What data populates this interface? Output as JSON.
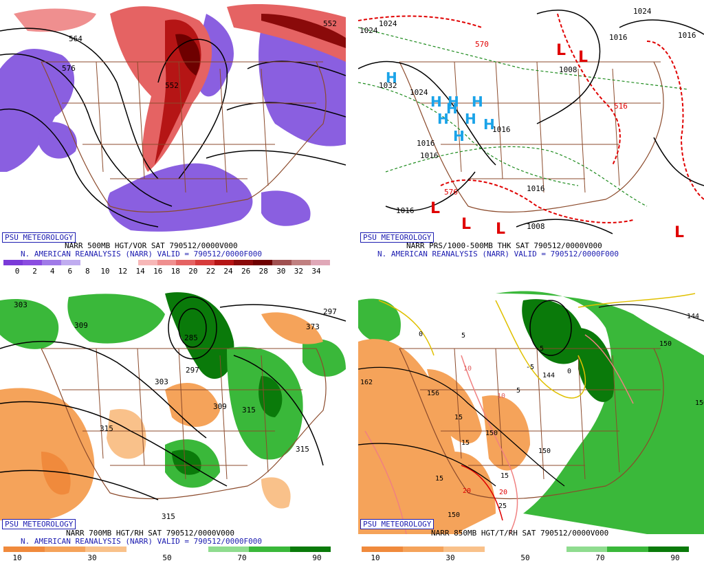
{
  "panels": [
    {
      "id": "tl",
      "badge": "PSU METEOROLOGY",
      "line1": "NARR 500MB HGT/VOR SAT 790512/0000V000",
      "line2": "N. AMERICAN REANALYSIS (NARR) VALID = 790512/0000F000",
      "colorbar_colors": [
        "#7a3ad8",
        "#8a4ce0",
        "#a07ae8",
        "#c0acf0",
        "#ffffff",
        "#ffffff",
        "#ffffff",
        "#f7b7b7",
        "#ef8f8f",
        "#e56363",
        "#d73b3b",
        "#b51515",
        "#8a0a0a",
        "#6e0000",
        "#a05050",
        "#c08080",
        "#e0a8b8"
      ],
      "colorbar_ticks": [
        "0",
        "2",
        "4",
        "6",
        "8",
        "10",
        "12",
        "14",
        "16",
        "18",
        "20",
        "22",
        "24",
        "26",
        "28",
        "30",
        "32",
        "34"
      ],
      "contour_labels": [
        "564",
        "576",
        "552",
        "552"
      ]
    },
    {
      "id": "tr",
      "badge": "PSU METEOROLOGY",
      "line1": "NARR PRS/1000-500MB THK SAT 790512/0000V000",
      "line2": "N. AMERICAN REANALYSIS (NARR) VALID = 790512/0000F000",
      "contour_labels": [
        "1024",
        "1024",
        "1032",
        "1024",
        "1016",
        "1016",
        "1016",
        "1016",
        "1008",
        "1016",
        "1016",
        "1008",
        "1024",
        "1016",
        "570",
        "516",
        "576"
      ],
      "highs": [
        "H",
        "H",
        "H",
        "H",
        "H",
        "H",
        "H",
        "H",
        "H"
      ],
      "lows": [
        "L",
        "L",
        "L",
        "L",
        "L",
        "L",
        "L"
      ]
    },
    {
      "id": "bl",
      "badge": "PSU METEOROLOGY",
      "line1": "NARR 700MB HGT/RH SAT 790512/0000V000",
      "line2": "N. AMERICAN REANALYSIS (NARR) VALID = 790512/0000F000",
      "colorbar_colors": [
        "#f08a3c",
        "#f5a35a",
        "#f9c18a",
        "#ffffff",
        "#ffffff",
        "#8fdc8f",
        "#3ab83a",
        "#0a7a0a"
      ],
      "colorbar_ticks": [
        "10",
        "30",
        "50",
        "70",
        "90"
      ],
      "contour_labels": [
        "303",
        "309",
        "285",
        "297",
        "297",
        "303",
        "309",
        "315",
        "315",
        "315",
        "303",
        "315",
        "373"
      ]
    },
    {
      "id": "br",
      "badge": "PSU METEOROLOGY",
      "line1": "NARR 850MB HGT/T/RH SAT 790512/0000V000",
      "colorbar_colors": [
        "#f08a3c",
        "#f5a35a",
        "#f9c18a",
        "#ffffff",
        "#ffffff",
        "#8fdc8f",
        "#3ab83a",
        "#0a7a0a"
      ],
      "colorbar_ticks": [
        "10",
        "30",
        "50",
        "70",
        "90"
      ],
      "contour_labels": [
        "0",
        "5",
        "10",
        "10",
        "5",
        "15",
        "15",
        "15",
        "15",
        "20",
        "20",
        "25",
        "-5",
        "-5",
        "0",
        "144",
        "144",
        "150",
        "150",
        "150",
        "150",
        "156",
        "162",
        "150"
      ]
    }
  ]
}
